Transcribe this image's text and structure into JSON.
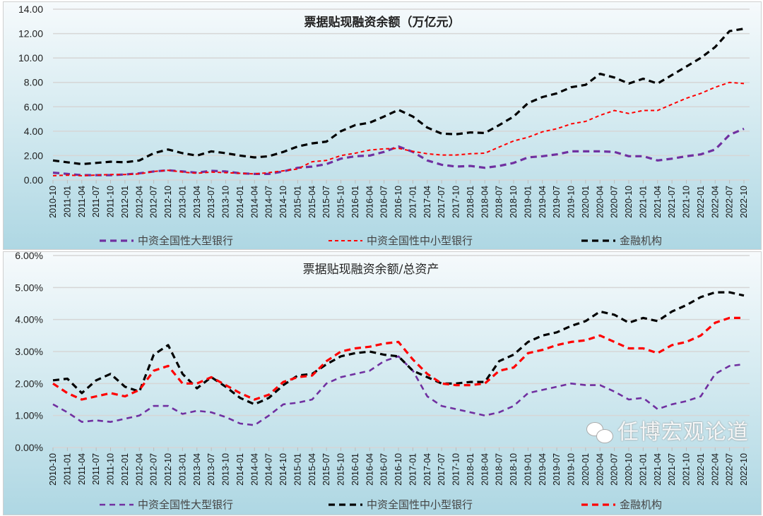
{
  "chart_data": [
    {
      "type": "line",
      "title": "票据贴现融资余额（万亿元）",
      "xlabel": "",
      "ylabel": "",
      "ylim": [
        0,
        14
      ],
      "yticks": [
        "0.00",
        "2.00",
        "4.00",
        "6.00",
        "8.00",
        "10.00",
        "12.00",
        "14.00"
      ],
      "grid": true,
      "legend_position": "bottom",
      "categories": [
        "2010-10",
        "2011-01",
        "2011-04",
        "2011-07",
        "2011-10",
        "2012-01",
        "2012-04",
        "2012-07",
        "2012-10",
        "2013-01",
        "2013-04",
        "2013-07",
        "2013-10",
        "2014-01",
        "2014-04",
        "2014-07",
        "2014-10",
        "2015-01",
        "2015-04",
        "2015-07",
        "2015-10",
        "2016-01",
        "2016-04",
        "2016-07",
        "2016-10",
        "2017-01",
        "2017-04",
        "2017-07",
        "2017-10",
        "2018-01",
        "2018-04",
        "2018-07",
        "2018-10",
        "2019-01",
        "2019-04",
        "2019-07",
        "2019-10",
        "2020-01",
        "2020-04",
        "2020-07",
        "2020-10",
        "2021-01",
        "2021-04",
        "2021-07",
        "2021-10",
        "2022-01",
        "2022-04",
        "2022-07",
        "2022-10"
      ],
      "series": [
        {
          "name": "中资全国性大型银行",
          "color": "#7030a0",
          "style": "thick-dash",
          "values": [
            0.6,
            0.5,
            0.4,
            0.4,
            0.4,
            0.45,
            0.55,
            0.7,
            0.8,
            0.7,
            0.6,
            0.75,
            0.7,
            0.55,
            0.5,
            0.5,
            0.7,
            1.0,
            1.1,
            1.3,
            1.75,
            1.95,
            2.0,
            2.3,
            2.75,
            2.3,
            1.6,
            1.25,
            1.1,
            1.15,
            1.0,
            1.15,
            1.4,
            1.85,
            1.95,
            2.1,
            2.35,
            2.35,
            2.35,
            2.3,
            1.95,
            1.95,
            1.6,
            1.75,
            1.95,
            2.1,
            2.5,
            3.7,
            4.2
          ]
        },
        {
          "name": "中资全国性中小型银行",
          "color": "#ff0000",
          "style": "thin-dash",
          "values": [
            0.35,
            0.4,
            0.35,
            0.4,
            0.45,
            0.45,
            0.5,
            0.7,
            0.8,
            0.65,
            0.55,
            0.65,
            0.6,
            0.55,
            0.5,
            0.6,
            0.75,
            0.9,
            1.5,
            1.6,
            2.0,
            2.2,
            2.45,
            2.55,
            2.6,
            2.35,
            2.15,
            2.05,
            2.05,
            2.15,
            2.2,
            2.7,
            3.2,
            3.5,
            3.95,
            4.2,
            4.6,
            4.8,
            5.3,
            5.7,
            5.45,
            5.7,
            5.7,
            6.2,
            6.7,
            7.1,
            7.6,
            8.0,
            7.9
          ]
        },
        {
          "name": "金融机构",
          "color": "#000000",
          "style": "thick-dash",
          "values": [
            1.6,
            1.45,
            1.3,
            1.4,
            1.5,
            1.45,
            1.6,
            2.2,
            2.5,
            2.2,
            2.0,
            2.35,
            2.2,
            2.0,
            1.85,
            1.95,
            2.3,
            2.75,
            3.0,
            3.15,
            4.0,
            4.5,
            4.7,
            5.2,
            5.75,
            5.2,
            4.3,
            3.8,
            3.75,
            3.9,
            3.85,
            4.5,
            5.2,
            6.3,
            6.8,
            7.1,
            7.6,
            7.8,
            8.7,
            8.4,
            7.9,
            8.3,
            7.9,
            8.6,
            9.3,
            10.0,
            10.9,
            12.2,
            12.4
          ]
        }
      ]
    },
    {
      "type": "line",
      "title": "票据贴现融资余额/总资产",
      "xlabel": "",
      "ylabel": "",
      "ylim": [
        0,
        6
      ],
      "yticks": [
        "0.00%",
        "1.00%",
        "2.00%",
        "3.00%",
        "4.00%",
        "5.00%",
        "6.00%"
      ],
      "grid": true,
      "legend_position": "bottom",
      "categories": [
        "2010-10",
        "2011-01",
        "2011-04",
        "2011-07",
        "2011-10",
        "2012-01",
        "2012-04",
        "2012-07",
        "2012-10",
        "2013-01",
        "2013-04",
        "2013-07",
        "2013-10",
        "2014-01",
        "2014-04",
        "2014-07",
        "2014-10",
        "2015-01",
        "2015-04",
        "2015-07",
        "2015-10",
        "2016-01",
        "2016-04",
        "2016-07",
        "2016-10",
        "2017-01",
        "2017-04",
        "2017-07",
        "2017-10",
        "2018-01",
        "2018-04",
        "2018-07",
        "2018-10",
        "2019-01",
        "2019-04",
        "2019-07",
        "2019-10",
        "2020-01",
        "2020-04",
        "2020-07",
        "2020-10",
        "2021-01",
        "2021-04",
        "2021-07",
        "2021-10",
        "2022-01",
        "2022-04",
        "2022-07",
        "2022-10"
      ],
      "series": [
        {
          "name": "中资全国性大型银行",
          "color": "#7030a0",
          "style": "dash",
          "values": [
            1.35,
            1.1,
            0.8,
            0.85,
            0.8,
            0.9,
            1.0,
            1.3,
            1.3,
            1.05,
            1.15,
            1.1,
            0.95,
            0.75,
            0.7,
            1.0,
            1.35,
            1.4,
            1.5,
            2.0,
            2.2,
            2.3,
            2.4,
            2.7,
            2.85,
            2.4,
            1.6,
            1.3,
            1.2,
            1.1,
            1.0,
            1.1,
            1.3,
            1.7,
            1.8,
            1.9,
            2.0,
            1.95,
            1.95,
            1.75,
            1.5,
            1.55,
            1.2,
            1.35,
            1.45,
            1.6,
            2.3,
            2.55,
            2.6
          ]
        },
        {
          "name": "中资全国性中小型银行",
          "color": "#000000",
          "style": "thick-dash",
          "values": [
            2.1,
            2.15,
            1.7,
            2.1,
            2.3,
            1.9,
            1.75,
            2.9,
            3.2,
            2.3,
            1.85,
            2.2,
            1.9,
            1.55,
            1.35,
            1.55,
            1.95,
            2.25,
            2.3,
            2.6,
            2.85,
            2.95,
            3.0,
            2.9,
            2.85,
            2.4,
            2.2,
            2.0,
            2.0,
            2.05,
            2.05,
            2.7,
            2.9,
            3.3,
            3.5,
            3.6,
            3.8,
            3.95,
            4.25,
            4.15,
            3.9,
            4.05,
            3.95,
            4.25,
            4.45,
            4.7,
            4.85,
            4.85,
            4.75
          ]
        },
        {
          "name": "金融机构",
          "color": "#ff0000",
          "style": "thick-dash",
          "values": [
            2.0,
            1.7,
            1.5,
            1.6,
            1.7,
            1.6,
            1.8,
            2.4,
            2.55,
            2.0,
            2.0,
            2.2,
            1.95,
            1.7,
            1.5,
            1.65,
            2.05,
            2.2,
            2.25,
            2.7,
            3.0,
            3.1,
            3.15,
            3.25,
            3.3,
            2.75,
            2.3,
            2.0,
            1.95,
            1.95,
            2.0,
            2.4,
            2.5,
            2.95,
            3.05,
            3.2,
            3.3,
            3.35,
            3.5,
            3.3,
            3.1,
            3.1,
            2.95,
            3.2,
            3.3,
            3.5,
            3.9,
            4.05,
            4.05
          ]
        }
      ]
    }
  ],
  "watermark": {
    "text": "任博宏观论道",
    "icon": "wechat-icon"
  }
}
